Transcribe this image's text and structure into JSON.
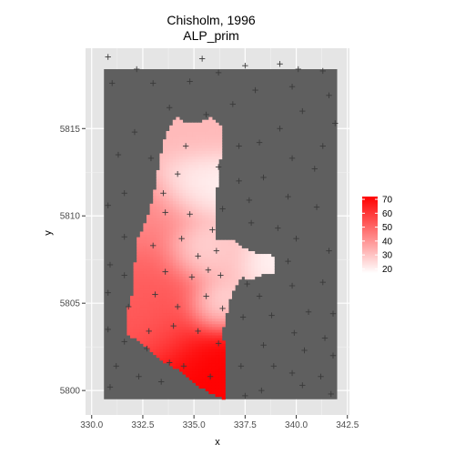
{
  "chart_data": {
    "type": "heatmap",
    "title_line1": "Chisholm, 1996",
    "title_line2": "ALP_prim",
    "xlabel": "x",
    "ylabel": "y",
    "xlim": [
      329.7,
      342.6
    ],
    "ylim": [
      5798.6,
      5819.6
    ],
    "xticks": [
      330.0,
      332.5,
      335.0,
      337.5,
      340.0,
      342.5
    ],
    "xtick_labels": [
      "330.0",
      "332.5",
      "335.0",
      "337.5",
      "340.0",
      "342.5"
    ],
    "yticks": [
      5800,
      5805,
      5810,
      5815
    ],
    "ytick_labels": [
      "5800",
      "5805",
      "5810",
      "5815"
    ],
    "grid": true,
    "data_region": {
      "x": [
        330.6,
        342.0
      ],
      "y": [
        5799.5,
        5818.4
      ]
    },
    "legend": {
      "position": "right",
      "range": [
        17,
        72
      ],
      "ticks": [
        20,
        30,
        40,
        50,
        60,
        70
      ],
      "tick_labels": [
        "20",
        "30",
        "40",
        "50",
        "60",
        "70"
      ]
    },
    "colors": {
      "background": "#e5e5e5",
      "missing": "#5f5f5f",
      "low": "#ffffff",
      "high": "#ff0000",
      "grid": "#f2f2f2",
      "point": "#3a3a3a"
    },
    "mask_polygon": [
      [
        333.9,
        5815.3
      ],
      [
        334.2,
        5815.7
      ],
      [
        334.5,
        5815.4
      ],
      [
        335.3,
        5815.4
      ],
      [
        335.8,
        5815.6
      ],
      [
        336.2,
        5815.2
      ],
      [
        336.4,
        5815.1
      ],
      [
        336.3,
        5813.5
      ],
      [
        336.1,
        5811.5
      ],
      [
        336.0,
        5810.0
      ],
      [
        336.0,
        5808.7
      ],
      [
        336.9,
        5808.6
      ],
      [
        337.2,
        5808.3
      ],
      [
        337.7,
        5808.0
      ],
      [
        338.2,
        5807.8
      ],
      [
        338.7,
        5807.8
      ],
      [
        338.9,
        5807.7
      ],
      [
        338.9,
        5806.7
      ],
      [
        338.4,
        5806.7
      ],
      [
        337.8,
        5806.4
      ],
      [
        337.3,
        5806.5
      ],
      [
        337.0,
        5806.0
      ],
      [
        336.8,
        5805.5
      ],
      [
        336.6,
        5804.5
      ],
      [
        336.4,
        5803.5
      ],
      [
        336.5,
        5802.0
      ],
      [
        336.6,
        5800.4
      ],
      [
        336.6,
        5799.5
      ],
      [
        335.8,
        5799.8
      ],
      [
        335.2,
        5800.3
      ],
      [
        334.5,
        5801.0
      ],
      [
        333.6,
        5801.6
      ],
      [
        332.8,
        5802.3
      ],
      [
        332.2,
        5802.9
      ],
      [
        331.7,
        5803.3
      ],
      [
        331.7,
        5804.3
      ],
      [
        332.0,
        5805.5
      ],
      [
        332.1,
        5807.0
      ],
      [
        332.2,
        5808.5
      ],
      [
        332.6,
        5809.5
      ],
      [
        333.0,
        5811.0
      ],
      [
        333.3,
        5813.0
      ],
      [
        333.6,
        5814.5
      ]
    ],
    "hotspots": [
      {
        "x": 336.5,
        "y": 5799.6,
        "value": 72,
        "spread": 2.8
      },
      {
        "x": 333.2,
        "y": 5806.8,
        "value": 52,
        "spread": 1.5
      },
      {
        "x": 332.2,
        "y": 5804.2,
        "value": 52,
        "spread": 1.7
      },
      {
        "x": 332.6,
        "y": 5809.8,
        "value": 42,
        "spread": 1.6
      },
      {
        "x": 334.5,
        "y": 5814.9,
        "value": 32,
        "spread": 1.3
      },
      {
        "x": 336.4,
        "y": 5807.8,
        "value": 30,
        "spread": 1.0
      },
      {
        "x": 335.1,
        "y": 5808.0,
        "value": 19,
        "spread": 0.9
      },
      {
        "x": 335.1,
        "y": 5811.8,
        "value": 19,
        "spread": 1.1
      },
      {
        "x": 336.3,
        "y": 5805.0,
        "value": 20,
        "spread": 0.9
      },
      {
        "x": 338.6,
        "y": 5807.3,
        "value": 19,
        "spread": 0.9
      }
    ],
    "points": [
      [
        330.8,
        5819.1
      ],
      [
        331.3,
        5813.5
      ],
      [
        331.0,
        5817.6
      ],
      [
        331.6,
        5811.3
      ],
      [
        332.2,
        5818.4
      ],
      [
        333.0,
        5817.6
      ],
      [
        333.8,
        5816.2
      ],
      [
        334.8,
        5817.7
      ],
      [
        335.4,
        5819.0
      ],
      [
        336.2,
        5818.2
      ],
      [
        337.5,
        5818.6
      ],
      [
        336.9,
        5816.4
      ],
      [
        338.0,
        5817.2
      ],
      [
        339.2,
        5818.7
      ],
      [
        340.1,
        5818.4
      ],
      [
        341.3,
        5818.3
      ],
      [
        339.8,
        5817.4
      ],
      [
        341.6,
        5816.9
      ],
      [
        340.3,
        5816.0
      ],
      [
        341.9,
        5815.3
      ],
      [
        339.2,
        5815.0
      ],
      [
        337.2,
        5814.0
      ],
      [
        338.2,
        5814.2
      ],
      [
        339.8,
        5813.3
      ],
      [
        341.3,
        5814.0
      ],
      [
        340.9,
        5812.7
      ],
      [
        338.4,
        5812.2
      ],
      [
        337.2,
        5812.0
      ],
      [
        336.2,
        5812.8
      ],
      [
        332.9,
        5813.3
      ],
      [
        332.1,
        5814.8
      ],
      [
        334.2,
        5812.4
      ],
      [
        333.5,
        5811.3
      ],
      [
        337.7,
        5810.9
      ],
      [
        339.6,
        5811.1
      ],
      [
        341.0,
        5810.5
      ],
      [
        336.4,
        5810.4
      ],
      [
        330.8,
        5810.6
      ],
      [
        331.6,
        5808.8
      ],
      [
        330.9,
        5807.2
      ],
      [
        334.8,
        5810.1
      ],
      [
        333.6,
        5810.2
      ],
      [
        336.1,
        5808.0
      ],
      [
        337.8,
        5809.6
      ],
      [
        339.1,
        5809.3
      ],
      [
        340.0,
        5808.7
      ],
      [
        341.6,
        5808.0
      ],
      [
        339.6,
        5807.4
      ],
      [
        341.3,
        5806.2
      ],
      [
        339.8,
        5806.0
      ],
      [
        338.2,
        5805.4
      ],
      [
        337.6,
        5806.1
      ],
      [
        336.3,
        5806.6
      ],
      [
        335.7,
        5806.9
      ],
      [
        334.9,
        5806.5
      ],
      [
        335.2,
        5807.7
      ],
      [
        333.6,
        5806.8
      ],
      [
        331.6,
        5806.6
      ],
      [
        330.8,
        5805.6
      ],
      [
        331.8,
        5804.8
      ],
      [
        333.1,
        5805.5
      ],
      [
        334.2,
        5804.8
      ],
      [
        335.6,
        5805.4
      ],
      [
        336.4,
        5804.7
      ],
      [
        337.4,
        5804.2
      ],
      [
        338.8,
        5804.3
      ],
      [
        340.6,
        5804.5
      ],
      [
        341.8,
        5804.4
      ],
      [
        339.9,
        5803.3
      ],
      [
        341.4,
        5803.0
      ],
      [
        338.4,
        5802.6
      ],
      [
        337.3,
        5801.4
      ],
      [
        338.9,
        5801.4
      ],
      [
        340.4,
        5802.3
      ],
      [
        341.8,
        5802.0
      ],
      [
        339.8,
        5801.0
      ],
      [
        341.2,
        5800.8
      ],
      [
        340.3,
        5800.3
      ],
      [
        341.7,
        5799.8
      ],
      [
        338.3,
        5800.0
      ],
      [
        337.5,
        5799.7
      ],
      [
        335.8,
        5800.8
      ],
      [
        334.5,
        5801.4
      ],
      [
        333.8,
        5801.6
      ],
      [
        332.7,
        5802.4
      ],
      [
        331.6,
        5802.8
      ],
      [
        330.8,
        5803.5
      ],
      [
        331.2,
        5801.4
      ],
      [
        330.9,
        5800.2
      ],
      [
        332.3,
        5800.8
      ],
      [
        333.4,
        5800.5
      ],
      [
        332.8,
        5803.4
      ],
      [
        334.0,
        5803.7
      ],
      [
        335.2,
        5803.4
      ],
      [
        336.2,
        5802.7
      ],
      [
        335.9,
        5809.2
      ],
      [
        334.4,
        5808.7
      ],
      [
        333.0,
        5808.3
      ],
      [
        334.6,
        5814.0
      ],
      [
        335.6,
        5815.8
      ]
    ]
  }
}
